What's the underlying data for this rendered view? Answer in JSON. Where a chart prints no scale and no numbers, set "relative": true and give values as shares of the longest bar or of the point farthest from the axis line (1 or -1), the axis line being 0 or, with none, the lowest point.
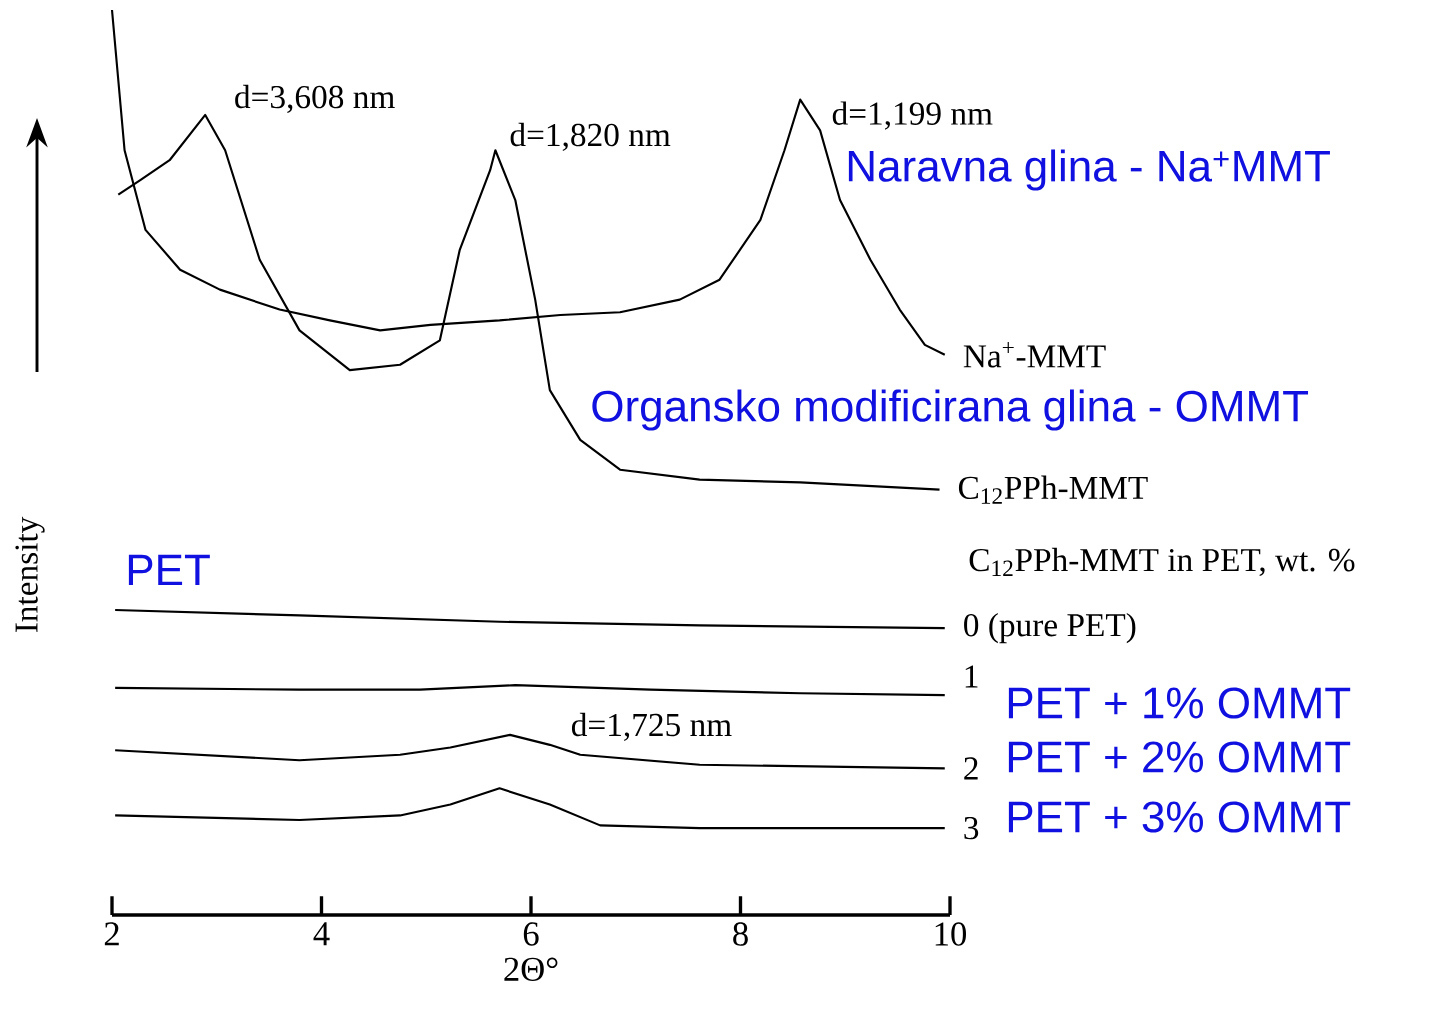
{
  "chart_data": {
    "type": "line",
    "relative": true,
    "xlabel": "2Θ°",
    "ylabel": "Intensity",
    "xlim": [
      2,
      10
    ],
    "xticks": [
      2,
      4,
      6,
      8,
      10
    ],
    "series": [
      {
        "name": "Na$^{+}$-MMT",
        "color": "#000000",
        "x": [
          2.0,
          2.12,
          2.32,
          2.65,
          3.03,
          3.6,
          4.08,
          4.56,
          5.04,
          5.7,
          6.28,
          6.85,
          7.42,
          7.8,
          8.19,
          8.42,
          8.57,
          8.76,
          8.95,
          9.24,
          9.52,
          9.76,
          9.95
        ],
        "values": [
          1.0,
          0.845,
          0.757,
          0.713,
          0.691,
          0.669,
          0.657,
          0.646,
          0.652,
          0.657,
          0.663,
          0.666,
          0.68,
          0.702,
          0.768,
          0.845,
          0.901,
          0.867,
          0.79,
          0.724,
          0.669,
          0.63,
          0.619
        ]
      },
      {
        "name": "C$_{12}$PPh-MMT",
        "color": "#000000",
        "x": [
          2.06,
          2.27,
          2.55,
          2.89,
          3.08,
          3.41,
          3.79,
          4.27,
          4.75,
          5.13,
          5.32,
          5.61,
          5.66,
          5.85,
          6.04,
          6.18,
          6.47,
          6.85,
          7.61,
          8.57,
          9.9
        ],
        "values": [
          0.796,
          0.812,
          0.834,
          0.884,
          0.845,
          0.724,
          0.646,
          0.602,
          0.608,
          0.635,
          0.735,
          0.823,
          0.845,
          0.79,
          0.68,
          0.58,
          0.525,
          0.492,
          0.481,
          0.478,
          0.47
        ]
      },
      {
        "name": "0 (pure PET)",
        "color": "#000000",
        "x": [
          2.03,
          3.79,
          5.7,
          7.61,
          9.95
        ],
        "values": [
          0.337,
          0.331,
          0.324,
          0.32,
          0.317
        ]
      },
      {
        "name": "1",
        "color": "#000000",
        "x": [
          2.03,
          3.79,
          4.94,
          5.85,
          7.14,
          8.57,
          9.95
        ],
        "values": [
          0.251,
          0.249,
          0.249,
          0.254,
          0.249,
          0.245,
          0.243
        ]
      },
      {
        "name": "2",
        "color": "#000000",
        "x": [
          2.03,
          3.79,
          4.75,
          5.23,
          5.8,
          6.18,
          6.47,
          7.61,
          9.95
        ],
        "values": [
          0.182,
          0.171,
          0.177,
          0.185,
          0.199,
          0.188,
          0.177,
          0.166,
          0.162
        ]
      },
      {
        "name": "3",
        "color": "#000000",
        "x": [
          2.03,
          3.79,
          4.75,
          5.23,
          5.7,
          6.18,
          6.66,
          7.61,
          9.95
        ],
        "values": [
          0.11,
          0.105,
          0.11,
          0.122,
          0.14,
          0.122,
          0.099,
          0.096,
          0.096
        ]
      }
    ],
    "annotations": [
      {
        "text": "d=3,608 nm",
        "x": 2.89,
        "y": 0.884
      },
      {
        "text": "d=1,820 nm",
        "x": 5.66,
        "y": 0.845
      },
      {
        "text": "d=1,199 nm",
        "x": 8.57,
        "y": 0.901
      },
      {
        "text": "d=1,725 nm",
        "x": 5.8,
        "y": 0.199
      },
      "C$_{12}$PPh-MMT in PET, wt. %",
      "Naravna glina - Na$^{+}$MMT",
      "Organsko modificirana glina - OMMT",
      "PET",
      "PET + 1% OMMT",
      "PET + 2% OMMT",
      "PET + 3% OMMT"
    ]
  }
}
